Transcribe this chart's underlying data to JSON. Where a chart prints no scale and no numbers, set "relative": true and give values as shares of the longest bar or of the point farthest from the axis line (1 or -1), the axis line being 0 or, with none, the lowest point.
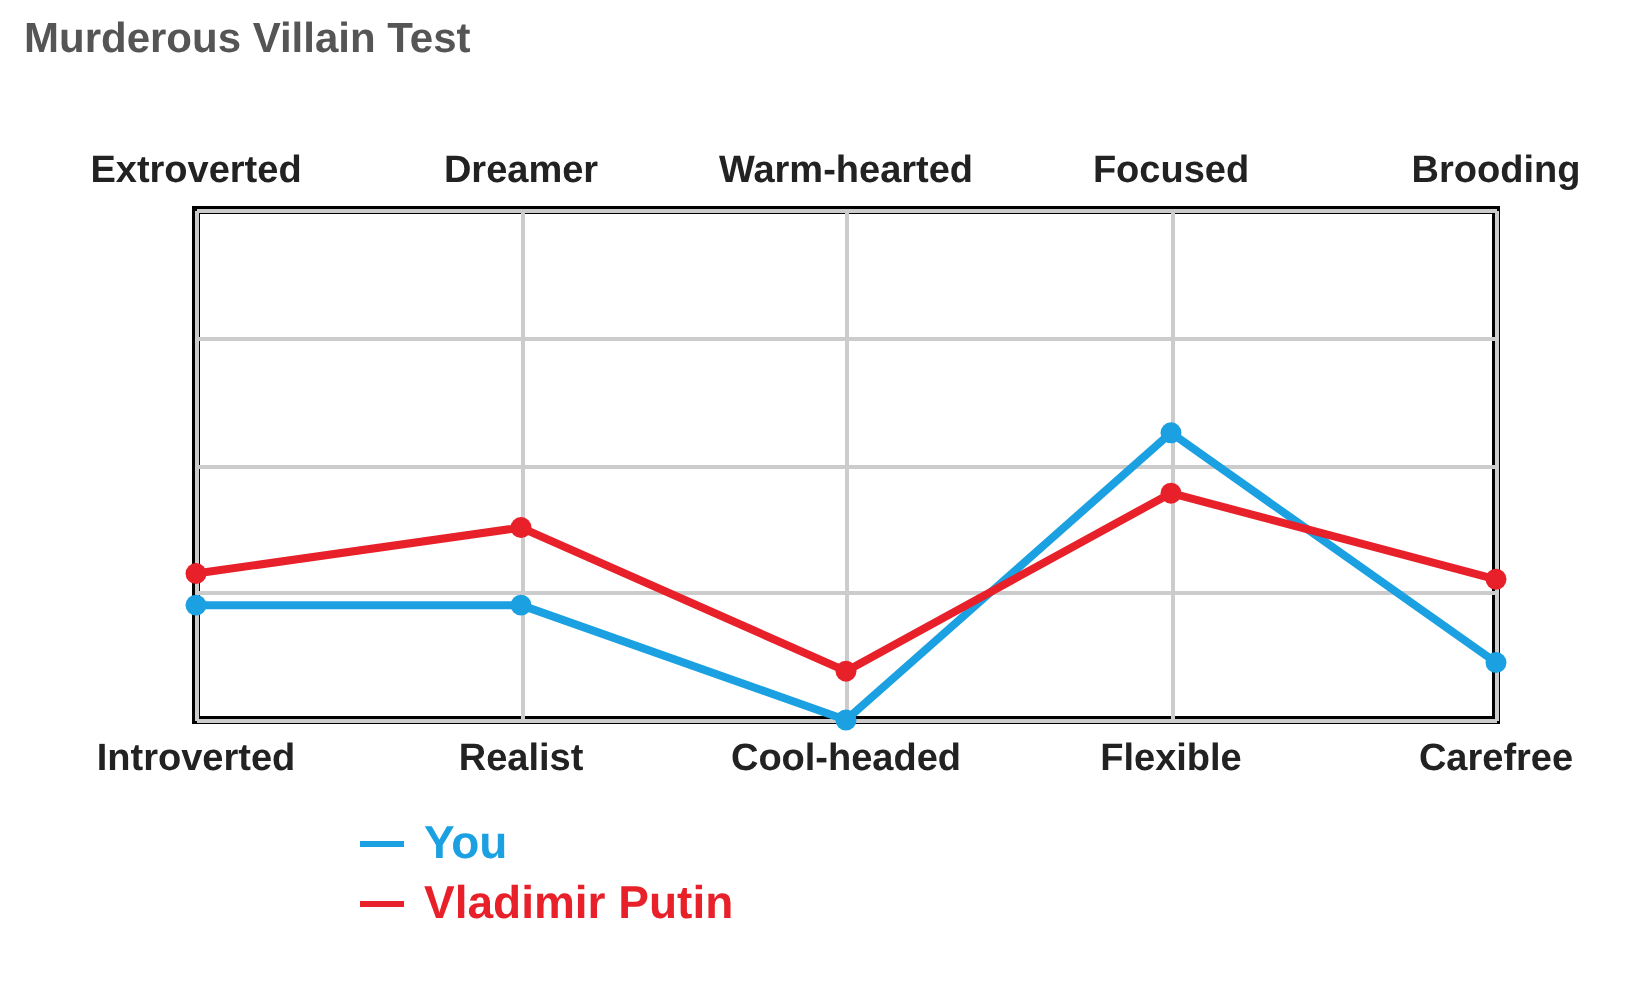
{
  "chart_data": {
    "type": "line",
    "title": "Murderous Villain Test",
    "relative": true,
    "categories": [
      "Introverted",
      "Realist",
      "Cool-headed",
      "Flexible",
      "Carefree"
    ],
    "annotations": [
      "Extroverted",
      "Dreamer",
      "Warm-hearted",
      "Focused",
      "Brooding"
    ],
    "series": [
      {
        "name": "You",
        "color": "#1ba1e2",
        "values": [
          0.4,
          0.4,
          0,
          1,
          0.2
        ]
      },
      {
        "name": "Vladimir Putin",
        "color": "#e8202a",
        "values": [
          0.51,
          0.67,
          0.17,
          0.79,
          0.49
        ]
      }
    ],
    "grid": true,
    "legend": "bottom left",
    "marker": "circle",
    "line_style": "solid"
  }
}
